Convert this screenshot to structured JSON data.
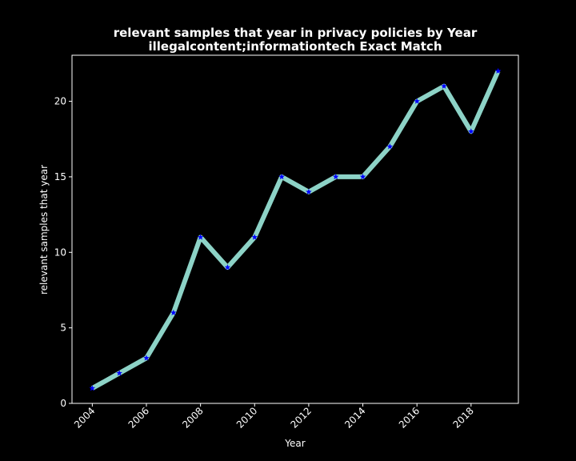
{
  "chart_data": {
    "type": "line",
    "title_line1": "relevant samples that year in privacy policies by Year",
    "title_line2": "illegalcontent;informationtech Exact Match",
    "xlabel": "Year",
    "ylabel": "relevant samples that year",
    "x": [
      2004,
      2005,
      2006,
      2007,
      2008,
      2009,
      2010,
      2011,
      2012,
      2013,
      2014,
      2015,
      2016,
      2017,
      2018,
      2019
    ],
    "values": [
      1,
      2,
      3,
      6,
      11,
      9,
      11,
      15,
      14,
      15,
      15,
      17,
      20,
      21,
      18,
      22
    ],
    "xticks": [
      "2004",
      "2006",
      "2008",
      "2010",
      "2012",
      "2014",
      "2016",
      "2018"
    ],
    "yticks": [
      "0",
      "5",
      "10",
      "15",
      "20"
    ],
    "xlim": [
      2003.25,
      2019.75
    ],
    "ylim": [
      0,
      23.05
    ],
    "grid": false,
    "line_color": "#8dd3c7",
    "marker_color": "#0000ff",
    "background": "#000000",
    "text_color": "#ffffff"
  }
}
